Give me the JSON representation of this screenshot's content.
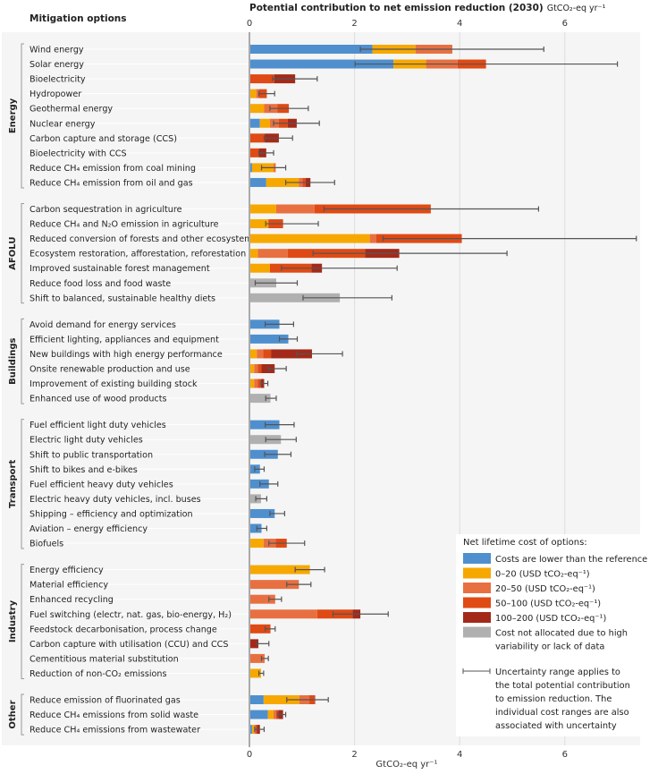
{
  "chart_data": {
    "type": "bar",
    "orientation": "horizontal-stacked",
    "title": "Potential contribution to net emission reduction (2030)",
    "title_unit": "GtCO₂-eq yr⁻¹",
    "row_header": "Mitigation options",
    "xlabel": "GtCO₂-eq yr⁻¹",
    "xlim": [
      0,
      7.4
    ],
    "xticks": [
      0,
      2,
      4,
      6
    ],
    "grid": true,
    "legend_placement": "bottom-right",
    "legend": {
      "title": "Net lifetime cost of options:",
      "items": [
        {
          "key": "lower",
          "label": "Costs are lower than the reference",
          "color": "#4f8fce"
        },
        {
          "key": "c0_20",
          "label": "0–20 (USD tCO₂-eq⁻¹)",
          "color": "#f7a800"
        },
        {
          "key": "c20_50",
          "label": "20–50 (USD tCO₂-eq⁻¹)",
          "color": "#e87040"
        },
        {
          "key": "c50_100",
          "label": "50–100 (USD tCO₂-eq⁻¹)",
          "color": "#e04a14"
        },
        {
          "key": "c100_200",
          "label": "100–200 (USD tCO₂-eq⁻¹)",
          "color": "#a32a1a"
        },
        {
          "key": "na",
          "label": "Cost not allocated due to high",
          "label2": "variability or lack of data",
          "color": "#b0b0b0"
        }
      ],
      "uncertainty_note": [
        "Uncertainty range applies to",
        "the total potential contribution",
        "to emission reduction. The",
        "individual cost ranges are also",
        "associated with uncertainty"
      ]
    },
    "groups": [
      {
        "name": "Energy",
        "options": [
          {
            "label": "Wind energy",
            "segments": [
              [
                "lower",
                2.34
              ],
              [
                "c0_20",
                3.16
              ],
              [
                "c20_50",
                3.86
              ]
            ],
            "range": [
              2.11,
              5.6
            ]
          },
          {
            "label": "Solar energy",
            "segments": [
              [
                "lower",
                2.74
              ],
              [
                "c0_20",
                3.36
              ],
              [
                "c20_50",
                3.96
              ],
              [
                "c50_100",
                4.5
              ]
            ],
            "range": [
              2.01,
              7.0
            ]
          },
          {
            "label": "Bioelectricity",
            "segments": [
              [
                "c50_100",
                0.47
              ],
              [
                "c100_200",
                0.87
              ]
            ],
            "range": [
              0.44,
              1.29
            ]
          },
          {
            "label": "Hydropower",
            "segments": [
              [
                "c0_20",
                0.13
              ],
              [
                "c20_50",
                0.18
              ],
              [
                "c50_100",
                0.33
              ]
            ],
            "range": [
              0.18,
              0.48
            ]
          },
          {
            "label": "Geothermal energy",
            "segments": [
              [
                "c0_20",
                0.28
              ],
              [
                "c20_50",
                0.53
              ],
              [
                "c50_100",
                0.75
              ]
            ],
            "range": [
              0.39,
              1.12
            ]
          },
          {
            "label": "Nuclear energy",
            "segments": [
              [
                "lower",
                0.2
              ],
              [
                "c0_20",
                0.39
              ],
              [
                "c20_50",
                0.56
              ],
              [
                "c50_100",
                0.73
              ],
              [
                "c100_200",
                0.9
              ]
            ],
            "range": [
              0.46,
              1.33
            ]
          },
          {
            "label": "Carbon capture and storage (CCS)",
            "segments": [
              [
                "c50_100",
                0.29
              ],
              [
                "c100_200",
                0.56
              ]
            ],
            "range": [
              0.28,
              0.82
            ]
          },
          {
            "label": "Bioelectricity with CCS",
            "segments": [
              [
                "c50_100",
                0.18
              ],
              [
                "c100_200",
                0.32
              ]
            ],
            "range": [
              0.18,
              0.46
            ]
          },
          {
            "label": "Reduce CH₄ emission from coal mining",
            "segments": [
              [
                "lower",
                0.05
              ],
              [
                "c0_20",
                0.46
              ],
              [
                "c20_50",
                0.5
              ]
            ],
            "range": [
              0.23,
              0.69
            ]
          },
          {
            "label": "Reduce CH₄ emission from oil and gas",
            "segments": [
              [
                "lower",
                0.32
              ],
              [
                "c0_20",
                0.94
              ],
              [
                "c20_50",
                1.01
              ],
              [
                "c50_100",
                1.07
              ],
              [
                "c100_200",
                1.16
              ]
            ],
            "range": [
              0.69,
              1.62
            ]
          }
        ]
      },
      {
        "name": "AFOLU",
        "options": [
          {
            "label": "Carbon sequestration in agriculture",
            "segments": [
              [
                "c0_20",
                0.51
              ],
              [
                "c20_50",
                1.24
              ],
              [
                "c50_100",
                3.45
              ]
            ],
            "range": [
              1.42,
              5.5
            ]
          },
          {
            "label": "Reduce CH₄ and N₂O emission in agriculture",
            "segments": [
              [
                "c0_20",
                0.36
              ],
              [
                "c50_100",
                0.64
              ]
            ],
            "range": [
              0.31,
              1.31
            ]
          },
          {
            "label": "Reduced conversion of forests and other ecosystems",
            "segments": [
              [
                "c0_20",
                2.29
              ],
              [
                "c20_50",
                2.41
              ],
              [
                "c50_100",
                4.04
              ]
            ],
            "range": [
              2.54,
              7.36
            ]
          },
          {
            "label": "Ecosystem restoration, afforestation, reforestation",
            "segments": [
              [
                "c0_20",
                0.16
              ],
              [
                "c20_50",
                0.73
              ],
              [
                "c50_100",
                2.2
              ],
              [
                "c100_200",
                2.85
              ]
            ],
            "range": [
              1.21,
              4.9
            ]
          },
          {
            "label": "Improved sustainable forest management",
            "segments": [
              [
                "c0_20",
                0.39
              ],
              [
                "c50_100",
                1.18
              ],
              [
                "c100_200",
                1.38
              ]
            ],
            "range": [
              0.61,
              2.81
            ]
          },
          {
            "label": "Reduce food loss and food waste",
            "segments": [
              [
                "na",
                0.51
              ]
            ],
            "range": [
              0.11,
              0.91
            ]
          },
          {
            "label": "Shift to balanced, sustainable healthy diets",
            "segments": [
              [
                "na",
                1.72
              ]
            ],
            "range": [
              1.02,
              2.71
            ]
          }
        ]
      },
      {
        "name": "Buildings",
        "options": [
          {
            "label": "Avoid demand for energy services",
            "segments": [
              [
                "lower",
                0.57
              ]
            ],
            "range": [
              0.3,
              0.84
            ]
          },
          {
            "label": "Efficient lighting, appliances and equipment",
            "segments": [
              [
                "lower",
                0.74
              ]
            ],
            "range": [
              0.57,
              0.91
            ]
          },
          {
            "label": "New buildings with high energy performance",
            "segments": [
              [
                "c0_20",
                0.14
              ],
              [
                "c20_50",
                0.26
              ],
              [
                "c50_100",
                0.41
              ],
              [
                "c100_200",
                1.19
              ]
            ],
            "range": [
              0.9,
              1.77
            ]
          },
          {
            "label": "Onsite renewable production and use",
            "segments": [
              [
                "c0_20",
                0.09
              ],
              [
                "c20_50",
                0.16
              ],
              [
                "c50_100",
                0.23
              ],
              [
                "c100_200",
                0.48
              ]
            ],
            "range": [
              0.36,
              0.7
            ]
          },
          {
            "label": "Improvement of existing building stock",
            "segments": [
              [
                "c0_20",
                0.09
              ],
              [
                "c20_50",
                0.16
              ],
              [
                "c50_100",
                0.22
              ],
              [
                "c100_200",
                0.28
              ]
            ],
            "range": [
              0.22,
              0.35
            ]
          },
          {
            "label": "Enhanced use of wood products",
            "segments": [
              [
                "na",
                0.4
              ]
            ],
            "range": [
              0.31,
              0.51
            ]
          }
        ]
      },
      {
        "name": "Transport",
        "options": [
          {
            "label": "Fuel efficient light duty vehicles",
            "segments": [
              [
                "lower",
                0.57
              ]
            ],
            "range": [
              0.3,
              0.85
            ]
          },
          {
            "label": "Electric light duty vehicles",
            "segments": [
              [
                "na",
                0.6
              ]
            ],
            "range": [
              0.31,
              0.89
            ]
          },
          {
            "label": "Shift to public transportation",
            "segments": [
              [
                "lower",
                0.54
              ]
            ],
            "range": [
              0.29,
              0.79
            ]
          },
          {
            "label": "Shift to bikes and e-bikes",
            "segments": [
              [
                "lower",
                0.2
              ]
            ],
            "range": [
              0.1,
              0.28
            ]
          },
          {
            "label": "Fuel efficient heavy duty vehicles",
            "segments": [
              [
                "lower",
                0.37
              ]
            ],
            "range": [
              0.2,
              0.54
            ]
          },
          {
            "label": "Electric heavy duty vehicles, incl. buses",
            "segments": [
              [
                "na",
                0.22
              ]
            ],
            "range": [
              0.12,
              0.33
            ]
          },
          {
            "label": "Shipping – efficiency and optimization",
            "segments": [
              [
                "lower",
                0.48
              ]
            ],
            "range": [
              0.39,
              0.67
            ]
          },
          {
            "label": "Aviation – energy efficiency",
            "segments": [
              [
                "lower",
                0.23
              ]
            ],
            "range": [
              0.14,
              0.33
            ]
          },
          {
            "label": "Biofuels",
            "segments": [
              [
                "c0_20",
                0.27
              ],
              [
                "c20_50",
                0.5
              ],
              [
                "c50_100",
                0.71
              ]
            ],
            "range": [
              0.37,
              1.05
            ]
          }
        ]
      },
      {
        "name": "Industry",
        "options": [
          {
            "label": "Energy efficiency",
            "segments": [
              [
                "c0_20",
                1.15
              ]
            ],
            "range": [
              0.87,
              1.43
            ]
          },
          {
            "label": "Material efficiency",
            "segments": [
              [
                "c20_50",
                0.94
              ]
            ],
            "range": [
              0.71,
              1.17
            ]
          },
          {
            "label": "Enhanced recycling",
            "segments": [
              [
                "c20_50",
                0.49
              ]
            ],
            "range": [
              0.37,
              0.61
            ]
          },
          {
            "label": "Fuel switching (electr, nat. gas, bio-energy, H₂)",
            "segments": [
              [
                "c20_50",
                1.29
              ],
              [
                "c50_100",
                1.96
              ],
              [
                "c100_200",
                2.11
              ]
            ],
            "range": [
              1.59,
              2.64
            ]
          },
          {
            "label": "Feedstock decarbonisation, process change",
            "segments": [
              [
                "c50_100",
                0.4
              ]
            ],
            "range": [
              0.3,
              0.49
            ]
          },
          {
            "label": "Carbon capture with utilisation (CCU) and CCS",
            "segments": [
              [
                "c100_200",
                0.17
              ]
            ],
            "range": [
              0.14,
              0.37
            ]
          },
          {
            "label": "Cementitious material substitution",
            "segments": [
              [
                "c20_50",
                0.29
              ]
            ],
            "range": [
              0.23,
              0.36
            ]
          },
          {
            "label": "Reduction of non-CO₂ emissions",
            "segments": [
              [
                "c0_20",
                0.22
              ]
            ],
            "range": [
              0.18,
              0.27
            ]
          }
        ]
      },
      {
        "name": "Other",
        "options": [
          {
            "label": "Reduce emission of fluorinated gas",
            "segments": [
              [
                "lower",
                0.27
              ],
              [
                "c0_20",
                0.95
              ],
              [
                "c20_50",
                1.14
              ],
              [
                "c50_100",
                1.24
              ],
              [
                "c100_200",
                1.25
              ]
            ],
            "range": [
              0.71,
              1.5
            ]
          },
          {
            "label": "Reduce CH₄ emissions from solid waste",
            "segments": [
              [
                "lower",
                0.35
              ],
              [
                "c0_20",
                0.46
              ],
              [
                "c20_50",
                0.51
              ],
              [
                "c50_100",
                0.55
              ],
              [
                "c100_200",
                0.64
              ]
            ],
            "range": [
              0.54,
              0.69
            ]
          },
          {
            "label": "Reduce CH₄ emissions from wastewater",
            "segments": [
              [
                "lower",
                0.05
              ],
              [
                "c0_20",
                0.09
              ],
              [
                "c20_50",
                0.12
              ],
              [
                "c50_100",
                0.14
              ],
              [
                "c100_200",
                0.2
              ]
            ],
            "range": [
              0.1,
              0.28
            ]
          }
        ]
      }
    ]
  }
}
